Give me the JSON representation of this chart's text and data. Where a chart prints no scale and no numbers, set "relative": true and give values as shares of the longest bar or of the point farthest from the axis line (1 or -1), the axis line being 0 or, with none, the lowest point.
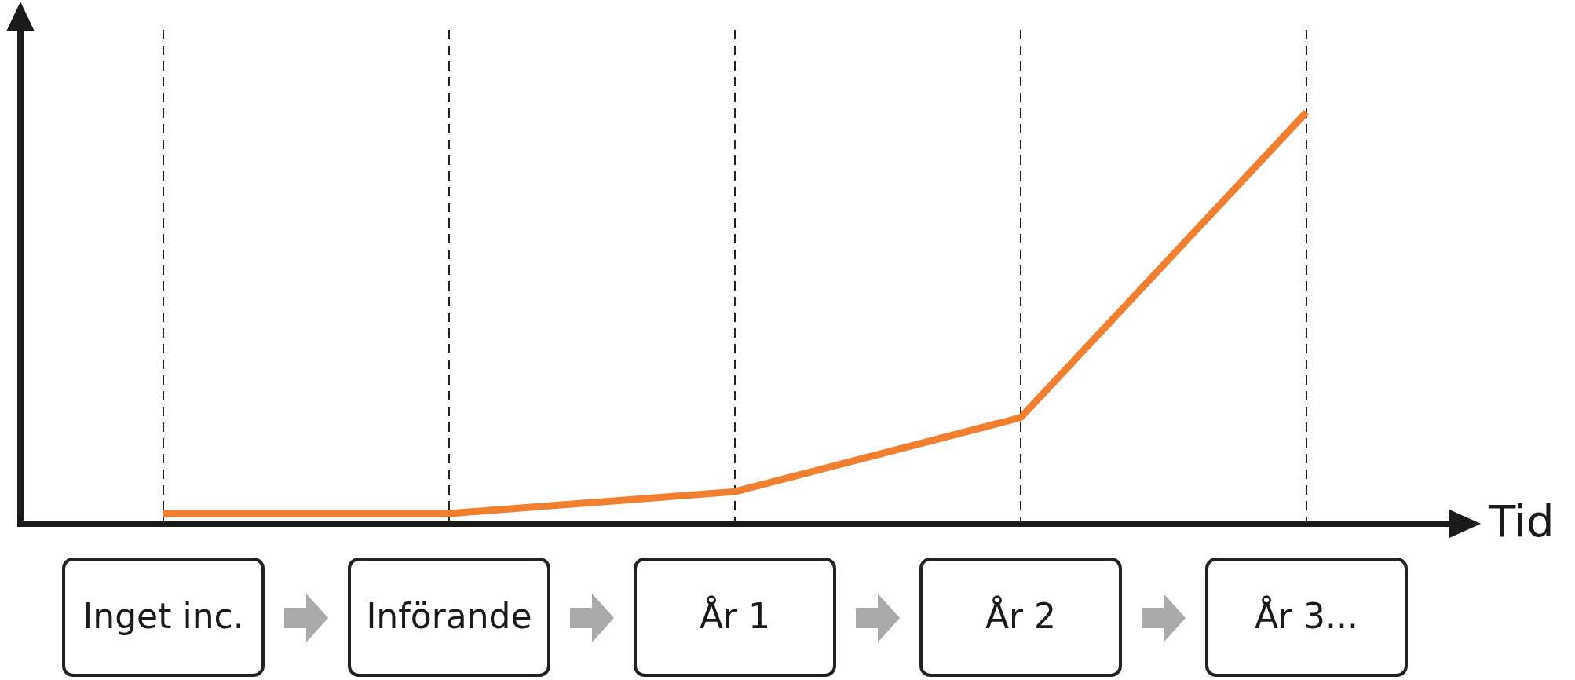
{
  "chart_data": {
    "type": "line",
    "relative": true,
    "xlabel": "Tid",
    "categories": [
      "Inget inc.",
      "Införande",
      "År 1",
      "År 2",
      "År 3..."
    ],
    "series": [
      {
        "color": "#f08030",
        "values": [
          0.025,
          0.025,
          0.078,
          0.258,
          1
        ]
      }
    ],
    "grid": "x",
    "legend": false,
    "marker": "none",
    "line_style": "solid"
  }
}
